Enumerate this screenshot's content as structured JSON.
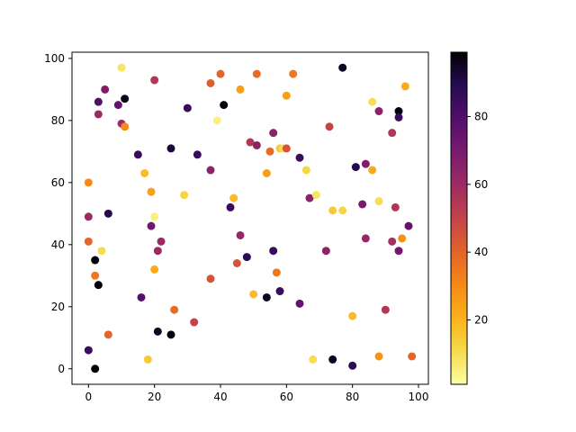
{
  "chart_data": {
    "type": "scatter",
    "colormap": "inferno_r",
    "xlim": [
      -5,
      103
    ],
    "ylim": [
      -5,
      102
    ],
    "x_ticks": [
      0,
      20,
      40,
      60,
      80,
      100
    ],
    "y_ticks": [
      0,
      20,
      40,
      60,
      80,
      100
    ],
    "colorbar": {
      "vmin": 1,
      "vmax": 99,
      "ticks": [
        20,
        40,
        60,
        80
      ]
    },
    "points": [
      {
        "x": 10,
        "y": 97,
        "c": 8
      },
      {
        "x": 20,
        "y": 93,
        "c": 55
      },
      {
        "x": 40,
        "y": 95,
        "c": 40
      },
      {
        "x": 51,
        "y": 95,
        "c": 38
      },
      {
        "x": 62,
        "y": 95,
        "c": 35
      },
      {
        "x": 77,
        "y": 97,
        "c": 95
      },
      {
        "x": 96,
        "y": 91,
        "c": 22
      },
      {
        "x": 3,
        "y": 86,
        "c": 80
      },
      {
        "x": 5,
        "y": 90,
        "c": 68
      },
      {
        "x": 9,
        "y": 85,
        "c": 75
      },
      {
        "x": 11,
        "y": 87,
        "c": 96
      },
      {
        "x": 3,
        "y": 82,
        "c": 60
      },
      {
        "x": 10,
        "y": 79,
        "c": 60
      },
      {
        "x": 11,
        "y": 78,
        "c": 30
      },
      {
        "x": 37,
        "y": 92,
        "c": 42
      },
      {
        "x": 46,
        "y": 90,
        "c": 25
      },
      {
        "x": 60,
        "y": 88,
        "c": 25
      },
      {
        "x": 86,
        "y": 86,
        "c": 10
      },
      {
        "x": 88,
        "y": 83,
        "c": 65
      },
      {
        "x": 94,
        "y": 83,
        "c": 98
      },
      {
        "x": 94,
        "y": 81,
        "c": 85
      },
      {
        "x": 30,
        "y": 84,
        "c": 85
      },
      {
        "x": 39,
        "y": 80,
        "c": 5
      },
      {
        "x": 41,
        "y": 85,
        "c": 98
      },
      {
        "x": 73,
        "y": 78,
        "c": 50
      },
      {
        "x": 92,
        "y": 76,
        "c": 55
      },
      {
        "x": 56,
        "y": 76,
        "c": 65
      },
      {
        "x": 49,
        "y": 73,
        "c": 55
      },
      {
        "x": 51,
        "y": 72,
        "c": 65
      },
      {
        "x": 55,
        "y": 70,
        "c": 38
      },
      {
        "x": 58,
        "y": 71,
        "c": 15
      },
      {
        "x": 59,
        "y": 71,
        "c": 10
      },
      {
        "x": 60,
        "y": 71,
        "c": 45
      },
      {
        "x": 64,
        "y": 68,
        "c": 85
      },
      {
        "x": 15,
        "y": 69,
        "c": 85
      },
      {
        "x": 25,
        "y": 71,
        "c": 92
      },
      {
        "x": 33,
        "y": 69,
        "c": 85
      },
      {
        "x": 37,
        "y": 64,
        "c": 65
      },
      {
        "x": 17,
        "y": 63,
        "c": 18
      },
      {
        "x": 54,
        "y": 63,
        "c": 25
      },
      {
        "x": 66,
        "y": 64,
        "c": 12
      },
      {
        "x": 81,
        "y": 65,
        "c": 90
      },
      {
        "x": 84,
        "y": 66,
        "c": 68
      },
      {
        "x": 86,
        "y": 64,
        "c": 22
      },
      {
        "x": 0,
        "y": 60,
        "c": 30
      },
      {
        "x": 19,
        "y": 57,
        "c": 25
      },
      {
        "x": 29,
        "y": 56,
        "c": 12
      },
      {
        "x": 44,
        "y": 55,
        "c": 18
      },
      {
        "x": 43,
        "y": 52,
        "c": 85
      },
      {
        "x": 67,
        "y": 55,
        "c": 65
      },
      {
        "x": 69,
        "y": 56,
        "c": 8
      },
      {
        "x": 74,
        "y": 51,
        "c": 15
      },
      {
        "x": 77,
        "y": 51,
        "c": 12
      },
      {
        "x": 83,
        "y": 53,
        "c": 70
      },
      {
        "x": 88,
        "y": 54,
        "c": 10
      },
      {
        "x": 93,
        "y": 52,
        "c": 55
      },
      {
        "x": 97,
        "y": 46,
        "c": 75
      },
      {
        "x": 0,
        "y": 49,
        "c": 60
      },
      {
        "x": 6,
        "y": 50,
        "c": 90
      },
      {
        "x": 19,
        "y": 46,
        "c": 72
      },
      {
        "x": 20,
        "y": 49,
        "c": 5
      },
      {
        "x": 22,
        "y": 41,
        "c": 60
      },
      {
        "x": 21,
        "y": 38,
        "c": 60
      },
      {
        "x": 46,
        "y": 43,
        "c": 62
      },
      {
        "x": 84,
        "y": 42,
        "c": 62
      },
      {
        "x": 92,
        "y": 41,
        "c": 58
      },
      {
        "x": 94,
        "y": 38,
        "c": 72
      },
      {
        "x": 95,
        "y": 42,
        "c": 28
      },
      {
        "x": 0,
        "y": 41,
        "c": 40
      },
      {
        "x": 4,
        "y": 38,
        "c": 10
      },
      {
        "x": 2,
        "y": 35,
        "c": 98
      },
      {
        "x": 45,
        "y": 34,
        "c": 45
      },
      {
        "x": 48,
        "y": 36,
        "c": 88
      },
      {
        "x": 56,
        "y": 38,
        "c": 85
      },
      {
        "x": 72,
        "y": 38,
        "c": 65
      },
      {
        "x": 2,
        "y": 30,
        "c": 35
      },
      {
        "x": 3,
        "y": 27,
        "c": 99
      },
      {
        "x": 20,
        "y": 32,
        "c": 22
      },
      {
        "x": 37,
        "y": 29,
        "c": 45
      },
      {
        "x": 50,
        "y": 24,
        "c": 18
      },
      {
        "x": 54,
        "y": 23,
        "c": 95
      },
      {
        "x": 57,
        "y": 31,
        "c": 35
      },
      {
        "x": 58,
        "y": 25,
        "c": 85
      },
      {
        "x": 64,
        "y": 21,
        "c": 75
      },
      {
        "x": 16,
        "y": 23,
        "c": 78
      },
      {
        "x": 26,
        "y": 19,
        "c": 38
      },
      {
        "x": 32,
        "y": 15,
        "c": 50
      },
      {
        "x": 6,
        "y": 11,
        "c": 40
      },
      {
        "x": 21,
        "y": 12,
        "c": 95
      },
      {
        "x": 25,
        "y": 11,
        "c": 98
      },
      {
        "x": 80,
        "y": 17,
        "c": 18
      },
      {
        "x": 90,
        "y": 19,
        "c": 55
      },
      {
        "x": 0,
        "y": 6,
        "c": 85
      },
      {
        "x": 2,
        "y": 0,
        "c": 99
      },
      {
        "x": 18,
        "y": 3,
        "c": 15
      },
      {
        "x": 68,
        "y": 3,
        "c": 10
      },
      {
        "x": 74,
        "y": 3,
        "c": 95
      },
      {
        "x": 80,
        "y": 1,
        "c": 88
      },
      {
        "x": 88,
        "y": 4,
        "c": 28
      },
      {
        "x": 98,
        "y": 4,
        "c": 40
      }
    ]
  }
}
